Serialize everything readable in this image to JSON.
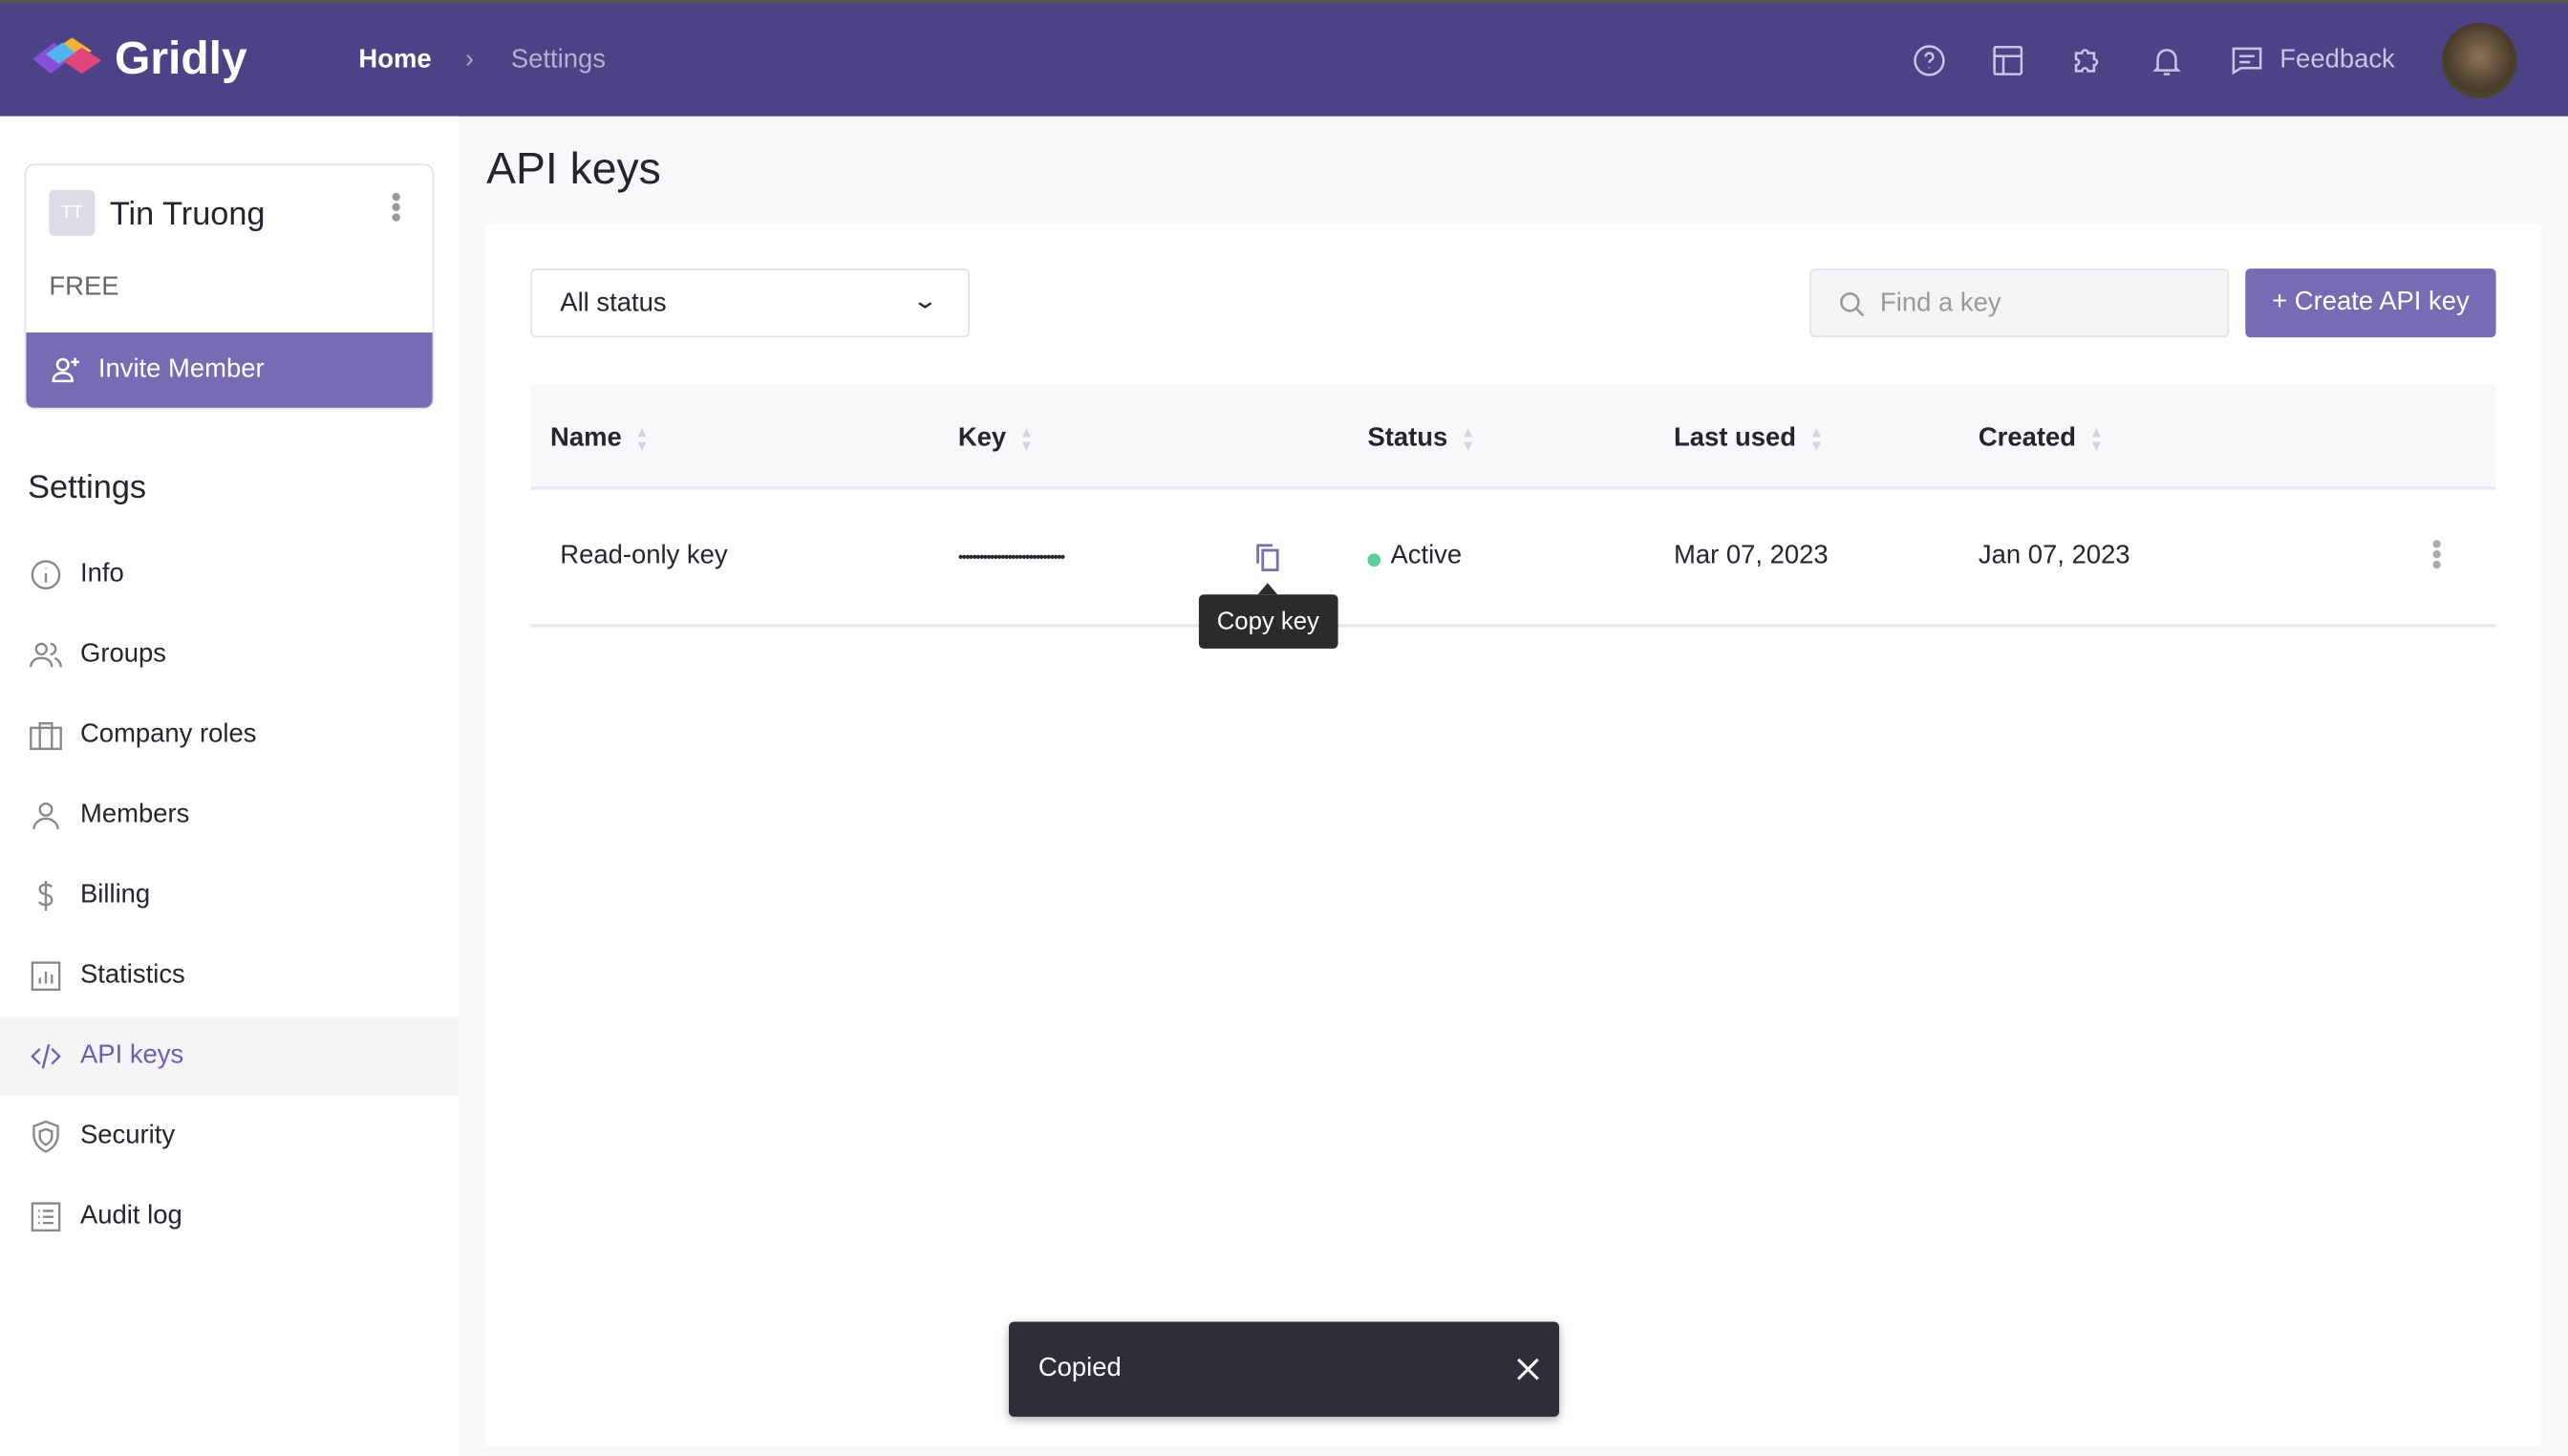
{
  "app": {
    "name": "Gridly"
  },
  "breadcrumb": {
    "home": "Home",
    "current": "Settings"
  },
  "header": {
    "feedback": "Feedback",
    "icons": [
      "help-icon",
      "layout-icon",
      "puzzle-icon",
      "bell-icon",
      "feedback-icon"
    ]
  },
  "account": {
    "initials": "TT",
    "name": "Tin Truong",
    "plan": "FREE",
    "invite_label": "Invite Member"
  },
  "sidebar": {
    "title": "Settings",
    "items": [
      {
        "label": "Info",
        "icon": "info-icon"
      },
      {
        "label": "Groups",
        "icon": "groups-icon"
      },
      {
        "label": "Company roles",
        "icon": "briefcase-icon"
      },
      {
        "label": "Members",
        "icon": "user-icon"
      },
      {
        "label": "Billing",
        "icon": "dollar-icon"
      },
      {
        "label": "Statistics",
        "icon": "chart-icon"
      },
      {
        "label": "API keys",
        "icon": "code-icon",
        "active": true
      },
      {
        "label": "Security",
        "icon": "shield-icon"
      },
      {
        "label": "Audit log",
        "icon": "list-icon"
      }
    ]
  },
  "page": {
    "title": "API keys"
  },
  "filters": {
    "status": "All status",
    "search_placeholder": "Find a key",
    "create_label": "+ Create API key"
  },
  "table": {
    "columns": [
      "Name",
      "Key",
      "Status",
      "Last used",
      "Created"
    ],
    "rows": [
      {
        "name": "Read-only key",
        "key": "••••••••••••••••••••••••••••••",
        "status": "Active",
        "last_used": "Mar 07, 2023",
        "created": "Jan 07, 2023"
      }
    ]
  },
  "tooltip": "Copy key",
  "toast": {
    "message": "Copied"
  },
  "colors": {
    "header": "#4b4385",
    "accent": "#776bb3",
    "active": "#5bcf97"
  }
}
